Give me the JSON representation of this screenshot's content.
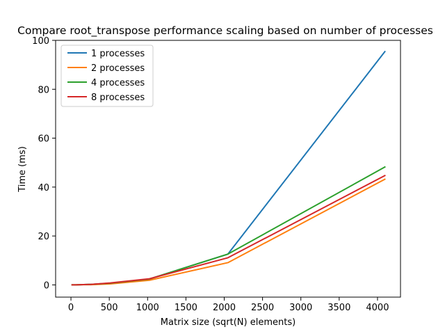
{
  "chart_data": {
    "type": "line",
    "title": "Compare root_transpose performance scaling based on number of processes",
    "xlabel": "Matrix size (sqrt(N) elements)",
    "ylabel": "Time (ms)",
    "xlim": [
      -200,
      4300
    ],
    "ylim": [
      -5,
      100
    ],
    "xticks": [
      0,
      500,
      1000,
      1500,
      2000,
      2500,
      3000,
      3500,
      4000
    ],
    "yticks": [
      0,
      20,
      40,
      60,
      80,
      100
    ],
    "grid": false,
    "legend_position": "top-left",
    "x": [
      16,
      32,
      64,
      128,
      256,
      512,
      1024,
      2048,
      4096
    ],
    "series": [
      {
        "name": "1 processes",
        "color": "#1f77b4",
        "values": [
          0.0,
          0.0,
          0.0,
          0.1,
          0.2,
          0.7,
          2.4,
          12.6,
          95.4
        ]
      },
      {
        "name": "2 processes",
        "color": "#ff7f0e",
        "values": [
          0.0,
          0.0,
          0.0,
          0.1,
          0.1,
          0.4,
          1.9,
          9.1,
          43.2
        ]
      },
      {
        "name": "4 processes",
        "color": "#2ca02c",
        "values": [
          0.0,
          0.0,
          0.0,
          0.1,
          0.2,
          0.7,
          2.4,
          12.6,
          48.2
        ]
      },
      {
        "name": "8 processes",
        "color": "#d62728",
        "values": [
          0.0,
          0.0,
          0.0,
          0.1,
          0.2,
          0.8,
          2.5,
          11.1,
          44.7
        ]
      }
    ]
  }
}
